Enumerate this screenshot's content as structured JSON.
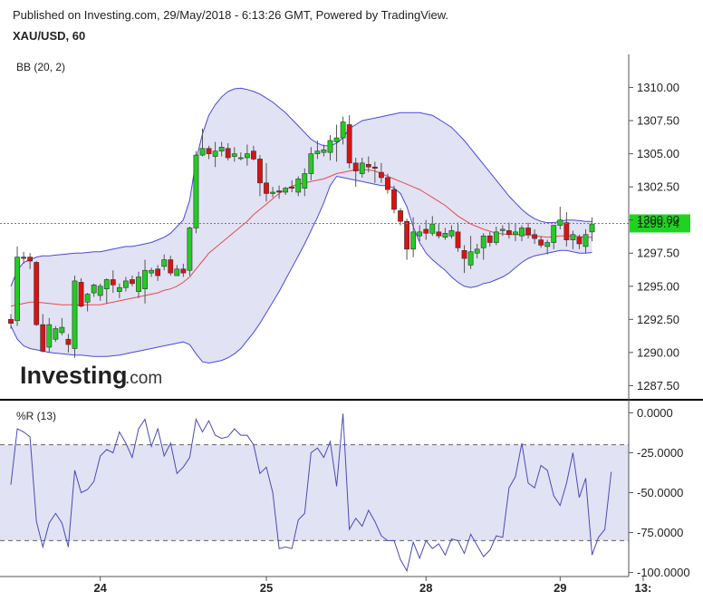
{
  "header": {
    "published": "Published on Investing.com, 29/May/2018 - 6:13:26 GMT, Powered by TradingView.",
    "symbol": "XAU/USD, 60"
  },
  "logo": {
    "brand": "Investing",
    "suffix": ".com"
  },
  "colors": {
    "up": "#22cc22",
    "down": "#dd1111",
    "band_line": "#4a4adb",
    "band_fill": "#e2e2f5",
    "basis": "#e84a4a",
    "price_line": "#22bb22",
    "wr_line": "#4a4ab8",
    "price_label_bg": "#1fd41f"
  },
  "chart_data": [
    {
      "type": "candlestick",
      "title": "XAU/USD, 60",
      "indicator_label": "BB (20, 2)",
      "ylim": [
        1286.5,
        1312.5
      ],
      "yticks": [
        1287.5,
        1290.0,
        1292.5,
        1295.0,
        1297.5,
        1300.0,
        1302.5,
        1305.0,
        1307.5,
        1310.0
      ],
      "ytick_labels": [
        "1287.50",
        "1290.00",
        "1292.50",
        "1295.00",
        "1297.50",
        "1300.00",
        "1302.50",
        "1305.00",
        "1307.50",
        "1310.00"
      ],
      "last_price": 1299.74,
      "last_price_label": "1299.74",
      "xticks": [
        {
          "index": 14,
          "label": "24"
        },
        {
          "index": 40,
          "label": "25"
        },
        {
          "index": 65,
          "label": "28"
        },
        {
          "index": 86,
          "label": "29"
        },
        {
          "index": 99,
          "label": "13:"
        }
      ],
      "candles_ohlc": [
        [
          1292.5,
          1292.9,
          1291.8,
          1292.2
        ],
        [
          1292.4,
          1298.0,
          1292.0,
          1297.2
        ],
        [
          1297.2,
          1297.6,
          1296.7,
          1297.1
        ],
        [
          1297.2,
          1297.5,
          1296.3,
          1296.9
        ],
        [
          1296.8,
          1296.9,
          1292.0,
          1292.1
        ],
        [
          1292.1,
          1292.9,
          1290.0,
          1290.1
        ],
        [
          1290.4,
          1292.6,
          1290.0,
          1292.1
        ],
        [
          1291.0,
          1292.0,
          1290.8,
          1291.8
        ],
        [
          1291.5,
          1292.6,
          1291.3,
          1291.9
        ],
        [
          1291.0,
          1291.4,
          1290.0,
          1290.6
        ],
        [
          1290.3,
          1295.8,
          1289.6,
          1295.4
        ],
        [
          1295.3,
          1295.6,
          1293.4,
          1293.5
        ],
        [
          1293.8,
          1294.5,
          1293.1,
          1294.4
        ],
        [
          1294.5,
          1295.2,
          1294.2,
          1295.1
        ],
        [
          1294.3,
          1295.2,
          1293.9,
          1295.0
        ],
        [
          1294.8,
          1295.6,
          1293.7,
          1295.5
        ],
        [
          1295.5,
          1296.2,
          1294.5,
          1295.1
        ],
        [
          1294.6,
          1295.2,
          1294.1,
          1294.9
        ],
        [
          1294.9,
          1295.7,
          1294.6,
          1295.4
        ],
        [
          1295.5,
          1295.8,
          1295.0,
          1295.2
        ],
        [
          1294.6,
          1296.1,
          1294.1,
          1295.7
        ],
        [
          1294.8,
          1297.0,
          1293.7,
          1296.2
        ],
        [
          1296.0,
          1296.4,
          1295.7,
          1296.2
        ],
        [
          1296.3,
          1296.6,
          1295.4,
          1295.8
        ],
        [
          1296.5,
          1297.4,
          1296.2,
          1297.0
        ],
        [
          1297.0,
          1297.3,
          1295.8,
          1296.0
        ],
        [
          1295.8,
          1296.6,
          1295.8,
          1296.3
        ],
        [
          1296.3,
          1296.7,
          1295.7,
          1296.0
        ],
        [
          1296.2,
          1299.5,
          1295.8,
          1299.4
        ],
        [
          1299.4,
          1305.2,
          1299.0,
          1304.9
        ],
        [
          1304.9,
          1306.9,
          1304.8,
          1305.4
        ],
        [
          1305.4,
          1305.6,
          1304.6,
          1305.0
        ],
        [
          1304.8,
          1305.9,
          1304.0,
          1305.2
        ],
        [
          1305.2,
          1305.9,
          1304.8,
          1305.5
        ],
        [
          1305.4,
          1305.8,
          1304.5,
          1304.7
        ],
        [
          1304.8,
          1305.5,
          1304.4,
          1305.0
        ],
        [
          1304.7,
          1305.1,
          1304.5,
          1304.7
        ],
        [
          1304.7,
          1305.7,
          1304.1,
          1305.0
        ],
        [
          1305.2,
          1305.6,
          1304.5,
          1304.6
        ],
        [
          1304.6,
          1304.9,
          1301.8,
          1302.8
        ],
        [
          1302.8,
          1304.3,
          1301.4,
          1302.0
        ],
        [
          1302.0,
          1302.5,
          1301.7,
          1302.1
        ],
        [
          1302.2,
          1302.6,
          1301.6,
          1302.1
        ],
        [
          1302.1,
          1302.5,
          1301.9,
          1302.4
        ],
        [
          1302.5,
          1303.0,
          1302.1,
          1302.4
        ],
        [
          1302.1,
          1303.3,
          1301.8,
          1303.1
        ],
        [
          1302.4,
          1303.9,
          1301.8,
          1303.5
        ],
        [
          1303.5,
          1305.5,
          1303.0,
          1305.0
        ],
        [
          1305.0,
          1306.0,
          1304.6,
          1305.2
        ],
        [
          1305.1,
          1305.7,
          1304.8,
          1305.3
        ],
        [
          1305.1,
          1306.4,
          1304.5,
          1306.0
        ],
        [
          1305.9,
          1307.2,
          1304.4,
          1306.2
        ],
        [
          1306.2,
          1307.8,
          1305.7,
          1307.4
        ],
        [
          1307.2,
          1307.9,
          1303.9,
          1304.3
        ],
        [
          1304.3,
          1304.7,
          1302.5,
          1303.7
        ],
        [
          1303.5,
          1304.7,
          1303.2,
          1304.3
        ],
        [
          1304.2,
          1304.8,
          1303.6,
          1304.0
        ],
        [
          1304.0,
          1304.4,
          1302.8,
          1303.9
        ],
        [
          1303.6,
          1304.3,
          1302.8,
          1303.2
        ],
        [
          1303.2,
          1303.5,
          1302.0,
          1302.3
        ],
        [
          1302.3,
          1302.6,
          1300.5,
          1300.8
        ],
        [
          1300.7,
          1300.9,
          1299.6,
          1299.9
        ],
        [
          1299.9,
          1300.1,
          1297.0,
          1297.8
        ],
        [
          1297.8,
          1300.2,
          1297.2,
          1299.1
        ],
        [
          1298.8,
          1299.6,
          1298.4,
          1299.1
        ],
        [
          1299.3,
          1300.0,
          1298.5,
          1299.0
        ],
        [
          1299.0,
          1300.3,
          1298.8,
          1299.7
        ],
        [
          1299.1,
          1299.7,
          1298.6,
          1298.8
        ],
        [
          1298.7,
          1299.4,
          1298.5,
          1299.0
        ],
        [
          1298.8,
          1299.6,
          1298.6,
          1299.2
        ],
        [
          1299.1,
          1299.8,
          1297.6,
          1297.9
        ],
        [
          1297.7,
          1298.1,
          1296.0,
          1297.1
        ],
        [
          1296.6,
          1298.8,
          1296.3,
          1297.6
        ],
        [
          1297.5,
          1298.2,
          1297.1,
          1297.8
        ],
        [
          1297.9,
          1299.0,
          1297.0,
          1298.8
        ],
        [
          1298.8,
          1299.1,
          1298.0,
          1298.3
        ],
        [
          1298.3,
          1299.5,
          1298.1,
          1299.1
        ],
        [
          1299.2,
          1299.6,
          1298.8,
          1299.3
        ],
        [
          1299.2,
          1299.8,
          1298.6,
          1298.9
        ],
        [
          1298.9,
          1299.7,
          1298.4,
          1299.1
        ],
        [
          1298.8,
          1299.6,
          1298.4,
          1299.4
        ],
        [
          1299.4,
          1299.8,
          1298.6,
          1298.9
        ],
        [
          1298.9,
          1299.3,
          1298.2,
          1298.6
        ],
        [
          1298.5,
          1298.8,
          1297.9,
          1298.1
        ],
        [
          1298.0,
          1298.5,
          1297.4,
          1298.3
        ],
        [
          1298.3,
          1299.5,
          1297.8,
          1299.6
        ],
        [
          1299.6,
          1301.0,
          1299.3,
          1300.0
        ],
        [
          1299.8,
          1300.6,
          1298.0,
          1298.5
        ],
        [
          1298.5,
          1299.2,
          1297.8,
          1298.9
        ],
        [
          1298.7,
          1298.9,
          1297.8,
          1298.2
        ],
        [
          1298.0,
          1299.3,
          1297.5,
          1298.9
        ],
        [
          1299.1,
          1300.2,
          1298.4,
          1299.7
        ]
      ],
      "bb_upper": [
        1295.0,
        1296.2,
        1296.8,
        1297.0,
        1297.2,
        1297.3,
        1297.3,
        1297.35,
        1297.4,
        1297.45,
        1297.5,
        1297.5,
        1297.55,
        1297.6,
        1297.6,
        1297.7,
        1297.8,
        1297.9,
        1298.0,
        1298.0,
        1298.1,
        1298.2,
        1298.3,
        1298.5,
        1298.7,
        1299.0,
        1299.5,
        1300.0,
        1301.5,
        1304.5,
        1306.5,
        1307.9,
        1308.7,
        1309.3,
        1309.7,
        1309.9,
        1309.95,
        1309.85,
        1309.7,
        1309.5,
        1309.2,
        1308.9,
        1308.5,
        1308.1,
        1307.6,
        1307.1,
        1306.6,
        1306.1,
        1305.8,
        1305.6,
        1305.6,
        1305.8,
        1306.2,
        1306.9,
        1307.2,
        1307.5,
        1307.6,
        1307.7,
        1307.8,
        1307.9,
        1308.0,
        1308.1,
        1308.1,
        1308.1,
        1308.1,
        1308.0,
        1307.9,
        1307.6,
        1307.3,
        1307.0,
        1306.5,
        1306.0,
        1305.4,
        1304.8,
        1304.2,
        1303.6,
        1303.0,
        1302.4,
        1301.8,
        1301.3,
        1300.8,
        1300.4,
        1300.1,
        1299.9,
        1299.8,
        1299.8,
        1299.9,
        1300.0,
        1300.0,
        1299.95,
        1299.9,
        1299.9
      ],
      "bb_basis": [
        1293.5,
        1293.6,
        1293.7,
        1293.8,
        1293.8,
        1293.75,
        1293.7,
        1293.65,
        1293.6,
        1293.6,
        1293.6,
        1293.6,
        1293.6,
        1293.6,
        1293.6,
        1293.7,
        1293.8,
        1293.9,
        1294.0,
        1294.1,
        1294.2,
        1294.3,
        1294.4,
        1294.5,
        1294.7,
        1294.8,
        1295.0,
        1295.3,
        1295.7,
        1296.3,
        1296.9,
        1297.5,
        1297.9,
        1298.3,
        1298.7,
        1299.1,
        1299.5,
        1299.9,
        1300.4,
        1300.8,
        1301.2,
        1301.6,
        1302.0,
        1302.3,
        1302.55,
        1302.7,
        1302.8,
        1302.9,
        1303.0,
        1303.1,
        1303.3,
        1303.5,
        1303.6,
        1303.7,
        1303.8,
        1303.8,
        1303.8,
        1303.7,
        1303.5,
        1303.3,
        1303.1,
        1302.9,
        1302.7,
        1302.5,
        1302.3,
        1302.0,
        1301.7,
        1301.4,
        1301.1,
        1300.7,
        1300.3,
        1300.0,
        1299.7,
        1299.5,
        1299.3,
        1299.15,
        1299.0,
        1298.95,
        1298.9,
        1298.9,
        1298.9,
        1298.85,
        1298.8,
        1298.75,
        1298.7,
        1298.75,
        1298.8,
        1298.8,
        1298.8,
        1298.75,
        1298.7,
        1298.7
      ],
      "bb_lower": [
        1292.0,
        1291.0,
        1290.5,
        1290.3,
        1290.2,
        1290.1,
        1290.0,
        1289.95,
        1289.9,
        1289.85,
        1289.8,
        1289.8,
        1289.75,
        1289.7,
        1289.7,
        1289.7,
        1289.75,
        1289.8,
        1289.9,
        1290.0,
        1290.1,
        1290.2,
        1290.3,
        1290.4,
        1290.5,
        1290.6,
        1290.7,
        1290.8,
        1290.6,
        1289.9,
        1289.3,
        1289.2,
        1289.3,
        1289.4,
        1289.6,
        1289.9,
        1290.3,
        1290.9,
        1291.5,
        1292.2,
        1293.0,
        1293.8,
        1294.6,
        1295.5,
        1296.4,
        1297.3,
        1298.2,
        1299.2,
        1300.2,
        1301.3,
        1302.6,
        1303.3,
        1303.2,
        1303.1,
        1303.0,
        1302.9,
        1302.8,
        1302.7,
        1302.6,
        1302.6,
        1302.4,
        1302.0,
        1301.0,
        1299.5,
        1298.3,
        1297.5,
        1297.0,
        1296.6,
        1296.2,
        1295.7,
        1295.3,
        1295.0,
        1294.9,
        1295.0,
        1295.2,
        1295.3,
        1295.5,
        1295.7,
        1296.0,
        1296.4,
        1296.8,
        1297.1,
        1297.3,
        1297.4,
        1297.5,
        1297.6,
        1297.7,
        1297.7,
        1297.6,
        1297.5,
        1297.5,
        1297.55
      ]
    },
    {
      "type": "line",
      "indicator_label": "%R (13)",
      "ylim": [
        -102.5,
        2.5
      ],
      "yticks": [
        0,
        -25,
        -50,
        -75,
        -100
      ],
      "ytick_labels": [
        "0.0000",
        "-25.0000",
        "-50.0000",
        "-75.0000",
        "-100.0000"
      ],
      "levels": [
        -20,
        -80
      ],
      "values": [
        -45.0,
        -10.0,
        -12.0,
        -15.0,
        -68.0,
        -84.0,
        -69.0,
        -63.0,
        -69.0,
        -84.0,
        -36.0,
        -50.0,
        -48.0,
        -43.0,
        -27.0,
        -23.0,
        -25.0,
        -12.0,
        -19.0,
        -28.0,
        -10.0,
        -4.0,
        -21.0,
        -10.0,
        -27.0,
        -19.0,
        -38.0,
        -34.0,
        -28.0,
        -4.0,
        -12.0,
        -5.0,
        -14.0,
        -16.0,
        -15.0,
        -10.0,
        -14.0,
        -14.0,
        -20.0,
        -38.0,
        -34.0,
        -50.0,
        -85.0,
        -84.0,
        -85.0,
        -67.0,
        -63.0,
        -25.0,
        -22.0,
        -28.0,
        -18.0,
        -46.0,
        -0.5,
        -73.0,
        -66.0,
        -71.0,
        -61.0,
        -68.0,
        -77.0,
        -80.0,
        -80.0,
        -92.0,
        -99.0,
        -81.0,
        -91.0,
        -80.0,
        -85.0,
        -82.0,
        -89.0,
        -79.0,
        -80.0,
        -88.0,
        -76.0,
        -83.0,
        -90.0,
        -86.0,
        -77.0,
        -78.0,
        -47.0,
        -40.0,
        -19.0,
        -44.0,
        -47.0,
        -33.0,
        -36.0,
        -52.0,
        -58.0,
        -44.0,
        -25.0,
        -53.0,
        -41.0,
        -89.0,
        -78.0,
        -73.0,
        -37.0
      ]
    }
  ]
}
